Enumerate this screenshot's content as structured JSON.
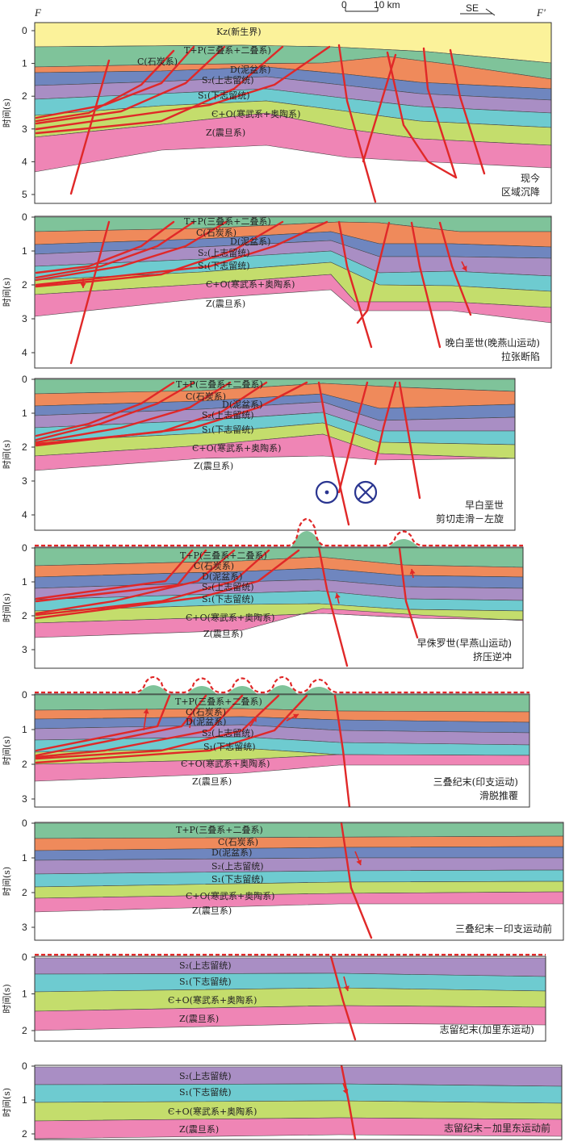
{
  "header": {
    "left_label": "F",
    "right_label": "F'",
    "scale_start": "0",
    "scale_end": "10 km",
    "direction": "SE"
  },
  "colors": {
    "Kz": "#fbf29a",
    "TP": "#7fc39a",
    "C": "#ef8a5b",
    "D": "#6f86bf",
    "S2": "#a98ec4",
    "S1": "#6ecbd0",
    "EO": "#c4dd6c",
    "Z": "#ef85b5",
    "fault": "#e02828",
    "unconformity": "#e02828",
    "border": "#333333",
    "symbol": "#2a3590"
  },
  "panels": [
    {
      "id": "present",
      "axis_label": "时间(s)",
      "ticks": [
        "0",
        "1",
        "2",
        "3",
        "4",
        "5"
      ],
      "stage": [
        "现今",
        "区域沉降"
      ],
      "layers": {
        "Kz": "Kz(新生界)",
        "TP": "T+P(三叠系+二叠系)",
        "C": "C(石炭系)",
        "D": "D(泥盆系)",
        "S2": "S₂(上志留统)",
        "S1": "S₁(下志留统)",
        "EO": "Є+O(寒武系+奥陶系)",
        "Z": "Z(震旦系)"
      }
    },
    {
      "id": "late-cretaceous",
      "axis_label": "时间(s)",
      "ticks": [
        "0",
        "1",
        "2",
        "3",
        "4"
      ],
      "stage": [
        "晚白垩世(晚燕山运动)",
        "拉张断陷"
      ],
      "layers": {
        "TP": "T+P(三叠系+二叠系)",
        "C": "C(石炭系)",
        "D": "D(泥盆系)",
        "S2": "S₂(上志留统)",
        "S1": "S₁(下志留统)",
        "EO": "Є+O(寒武系+奥陶系)",
        "Z": "Z(震旦系)"
      }
    },
    {
      "id": "early-cretaceous",
      "axis_label": "时间(s)",
      "ticks": [
        "0",
        "1",
        "2",
        "3",
        "4"
      ],
      "stage": [
        "早白垩世",
        "剪切走滑－左旋"
      ],
      "layers": {
        "TP": "T+P(三叠系+二叠系)",
        "C": "C(石炭系)",
        "D": "D(泥盆系)",
        "S2": "S₂(上志留统)",
        "S1": "S₁(下志留统)",
        "EO": "Є+O(寒武系+奥陶系)",
        "Z": "Z(震旦系)"
      }
    },
    {
      "id": "early-jurassic",
      "axis_label": "时间(s)",
      "ticks": [
        "0",
        "1",
        "2",
        "3"
      ],
      "stage": [
        "早侏罗世(早燕山运动)",
        "挤压逆冲"
      ],
      "layers": {
        "TP": "T+P(三叠系+二叠系)",
        "C": "C(石炭系)",
        "D": "D(泥盆系)",
        "S2": "S₂(上志留统)",
        "S1": "S₁(下志留统)",
        "EO": "Є+O(寒武系+奥陶系)",
        "Z": "Z(震旦系)"
      }
    },
    {
      "id": "end-triassic",
      "axis_label": "时间(s)",
      "ticks": [
        "0",
        "1",
        "2",
        "3"
      ],
      "stage": [
        "三叠纪末(印支运动)",
        "滑脱推覆"
      ],
      "layers": {
        "TP": "T+P(三叠系+二叠系)",
        "C": "C(石炭系)",
        "D": "D(泥盆系)",
        "S2": "S₂(上志留统)",
        "S1": "S₁(下志留统)",
        "EO": "Є+O(寒武系+奥陶系)",
        "Z": "Z(震旦系)"
      }
    },
    {
      "id": "pre-indosinian",
      "axis_label": "时间(s)",
      "ticks": [
        "0",
        "1",
        "2",
        "3"
      ],
      "stage": [
        "三叠纪末－印支运动前"
      ],
      "layers": {
        "TP": "T+P(三叠系+二叠系)",
        "C": "C(石炭系)",
        "D": "D(泥盆系)",
        "S2": "S₂(上志留统)",
        "S1": "S₁(下志留统)",
        "EO": "Є+O(寒武系+奥陶系)",
        "Z": "Z(震旦系)"
      }
    },
    {
      "id": "end-silurian",
      "axis_label": "时间(s)",
      "ticks": [
        "0",
        "1",
        "2"
      ],
      "stage": [
        "志留纪末(加里东运动)"
      ],
      "layers": {
        "S2": "S₂(上志留统)",
        "S1": "S₁(下志留统)",
        "EO": "Є+O(寒武系+奥陶系)",
        "Z": "Z(震旦系)"
      }
    },
    {
      "id": "pre-caledonian",
      "axis_label": "时间(s)",
      "ticks": [
        "0",
        "1",
        "2"
      ],
      "stage": [
        "志留纪末－加里东运动前"
      ],
      "layers": {
        "S2": "S₂(上志留统)",
        "S1": "S₁(下志留统)",
        "EO": "Є+O(寒武系+奥陶系)",
        "Z": "Z(震旦系)"
      }
    }
  ]
}
